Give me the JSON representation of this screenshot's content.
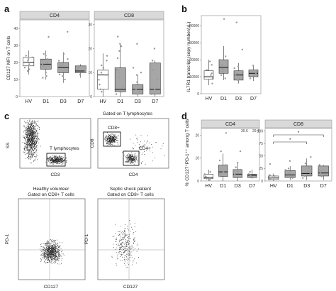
{
  "panels": {
    "a": "a",
    "b": "b",
    "c": "c",
    "d": "d"
  },
  "colors": {
    "strip": "#d9d9d9",
    "white_box": "#ffffff",
    "grey_box": "#a6a6a6",
    "point": "#9a9a9a",
    "dots": "#222222"
  },
  "panel_a": {
    "ylabel": "CD127 MFI on T cells",
    "categories": [
      "HV",
      "D1",
      "D3",
      "D7"
    ],
    "box_colors": [
      "white",
      "grey",
      "grey",
      "grey"
    ],
    "cd4": {
      "strip": "CD4",
      "yticks": [
        0,
        10,
        20,
        30,
        40
      ],
      "ylim": [
        0,
        45
      ],
      "boxes": [
        {
          "q1": 18,
          "med": 20,
          "q3": 23,
          "lo": 13,
          "hi": 27
        },
        {
          "q1": 16,
          "med": 19,
          "q3": 22,
          "lo": 10,
          "hi": 27
        },
        {
          "q1": 14,
          "med": 17,
          "q3": 20,
          "lo": 8,
          "hi": 26
        },
        {
          "q1": 14,
          "med": 15,
          "q3": 18,
          "lo": 11,
          "hi": 19
        }
      ],
      "points": [
        [
          22,
          19,
          17,
          24,
          21,
          18,
          20,
          23,
          16,
          15
        ],
        [
          25,
          35,
          20,
          16,
          14,
          18,
          22,
          19,
          12,
          24,
          11
        ],
        [
          21,
          38,
          16,
          13,
          19,
          22,
          18,
          12,
          25,
          10
        ],
        [
          17,
          16,
          15,
          13,
          18
        ]
      ]
    },
    "cd8": {
      "strip": "CD8",
      "yticks": [
        0,
        10,
        20,
        30
      ],
      "ylim": [
        0,
        32
      ],
      "boxes": [
        {
          "q1": 3,
          "med": 9,
          "q3": 11,
          "lo": 0,
          "hi": 18
        },
        {
          "q1": 2,
          "med": 3,
          "q3": 12,
          "lo": 0,
          "hi": 22
        },
        {
          "q1": 1,
          "med": 3,
          "q3": 5,
          "lo": 0,
          "hi": 9
        },
        {
          "q1": 1,
          "med": 3,
          "q3": 14,
          "lo": 0,
          "hi": 15
        }
      ],
      "points": [
        [
          12,
          10,
          5,
          9,
          2,
          13,
          7,
          17,
          3,
          15
        ],
        [
          22,
          25,
          21,
          19,
          4,
          2,
          11,
          16,
          8,
          1
        ],
        [
          12,
          9,
          2,
          5,
          4,
          3,
          22,
          1,
          6,
          10
        ],
        [
          3,
          20,
          11,
          15,
          7,
          1
        ]
      ]
    }
  },
  "panel_b": {
    "ylabel": "IL7R1 transcript (copy number/µL)",
    "categories": [
      "HV",
      "D1",
      "D3",
      "D7"
    ],
    "yticks": [
      0,
      10000,
      20000,
      30000,
      40000
    ],
    "ylim": [
      0,
      46000
    ],
    "boxes": [
      {
        "q1": 8500,
        "med": 10000,
        "q3": 13500,
        "lo": 5000,
        "hi": 20000
      },
      {
        "q1": 12000,
        "med": 15500,
        "q3": 20000,
        "lo": 8000,
        "hi": 28000
      },
      {
        "q1": 8000,
        "med": 11000,
        "q3": 13500,
        "lo": 6000,
        "hi": 18000
      },
      {
        "q1": 10000,
        "med": 12000,
        "q3": 14000,
        "lo": 7500,
        "hi": 17000
      }
    ],
    "points": [
      [
        14000,
        10000,
        12000,
        9000,
        6000,
        17000,
        11000,
        19000
      ],
      [
        44000,
        20000,
        17000,
        13000,
        11000,
        14500,
        9000,
        22000
      ],
      [
        42000,
        26000,
        15000,
        12000,
        9000,
        8000,
        11000,
        13500,
        16000
      ],
      [
        13000,
        11000,
        16500,
        9000,
        12000,
        14000
      ]
    ]
  },
  "panel_c": {
    "top_left": {
      "xlabel": "CD3",
      "ylabel": "SS",
      "gate_label": "T lymphocytes"
    },
    "top_right": {
      "title": "Gated on T lymphocytes",
      "xlabel": "CD4",
      "ylabel": "CD8",
      "gate1": "CD8+",
      "gate2": "CD4+"
    },
    "bottom_left": {
      "title1": "Healthy volunteer",
      "title2": "Gated on CD8+ T cells",
      "xlabel": "CD127",
      "ylabel": "PD-1"
    },
    "bottom_right": {
      "title1": "Septic shock patient",
      "title2": "Gated on CD8+ T cells",
      "xlabel": "CD127",
      "ylabel": "PD-1"
    }
  },
  "panel_d": {
    "ylabel": "% CD127⁺PD-1⁺⁺ among T cells",
    "categories": [
      "HV",
      "D1",
      "D3",
      "D7"
    ],
    "cd4": {
      "strip": "CD4",
      "yticks": [
        0,
        10,
        20
      ],
      "ylim": [
        0,
        23
      ],
      "boxes": [
        {
          "q1": 1,
          "med": 1.5,
          "q3": 3,
          "lo": 0,
          "hi": 5
        },
        {
          "q1": 2,
          "med": 4,
          "q3": 7,
          "lo": 0,
          "hi": 12
        },
        {
          "q1": 1.5,
          "med": 3,
          "q3": 5,
          "lo": 0,
          "hi": 8
        },
        {
          "q1": 1.5,
          "med": 2.5,
          "q3": 3,
          "lo": 1,
          "hi": 5
        }
      ],
      "points": [
        [
          1,
          3,
          2,
          4,
          1.5,
          0.5
        ],
        [
          21,
          13,
          7,
          3,
          5,
          9,
          2,
          4
        ],
        [
          13,
          5,
          3,
          8,
          2,
          6,
          4
        ],
        [
          3,
          2,
          4,
          2.5,
          1.5
        ]
      ],
      "offscale": [
        "39.6",
        "29.4"
      ]
    },
    "cd8": {
      "strip": "CD8",
      "yticks": [
        0,
        25,
        50,
        75,
        100
      ],
      "ylim": [
        0,
        105
      ],
      "boxes": [
        {
          "q1": 3,
          "med": 6,
          "q3": 10,
          "lo": 0,
          "hi": 15
        },
        {
          "q1": 7,
          "med": 12,
          "q3": 21,
          "lo": 2,
          "hi": 30
        },
        {
          "q1": 10,
          "med": 15,
          "q3": 30,
          "lo": 2,
          "hi": 45
        },
        {
          "q1": 10,
          "med": 16,
          "q3": 30,
          "lo": 2,
          "hi": 32
        }
      ],
      "points": [
        [
          34,
          5,
          8,
          10,
          3,
          7,
          12
        ],
        [
          40,
          14,
          22,
          6,
          18,
          9,
          25
        ],
        [
          48,
          26,
          18,
          10,
          35,
          6,
          14
        ],
        [
          32,
          22,
          15,
          9,
          28,
          12
        ]
      ],
      "sig": [
        {
          "from": 0,
          "to": 3,
          "label": "*"
        },
        {
          "from": 0,
          "to": 2,
          "label": "*"
        }
      ]
    }
  }
}
